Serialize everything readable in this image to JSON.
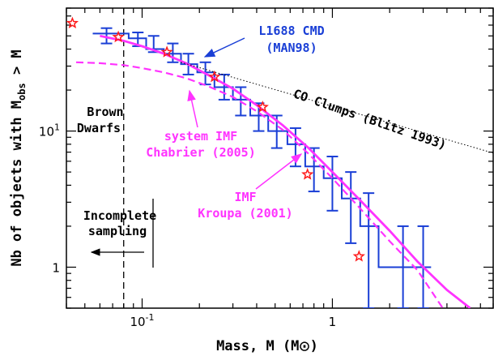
{
  "chart_data": {
    "type": "line",
    "xscale": "log",
    "yscale": "log",
    "xlim": [
      0.04,
      7.0
    ],
    "ylim": [
      0.5,
      80
    ],
    "xlabel_pre": "Mass, M (M",
    "xlabel_post": ")",
    "ylabel_pre": "Nb of objects with M",
    "ylabel_sub": "obs",
    "ylabel_post": " > M",
    "x_ticks": [
      {
        "value": 0.1,
        "label": "10",
        "exp": "-1"
      },
      {
        "value": 1,
        "label": "1",
        "exp": ""
      }
    ],
    "y_ticks": [
      {
        "value": 1,
        "label": "1",
        "exp": ""
      },
      {
        "value": 10,
        "label": "10",
        "exp": "1"
      }
    ],
    "series": [
      {
        "name": "L1688 CMD (MAN98)",
        "kind": "histogram_with_errorbars",
        "color": "#1a3fd6",
        "steps": [
          [
            0.055,
            52
          ],
          [
            0.085,
            52
          ],
          [
            0.085,
            48
          ],
          [
            0.105,
            48
          ],
          [
            0.105,
            40
          ],
          [
            0.13,
            40
          ],
          [
            0.13,
            37
          ],
          [
            0.16,
            37
          ],
          [
            0.16,
            31
          ],
          [
            0.195,
            31
          ],
          [
            0.195,
            27
          ],
          [
            0.24,
            27
          ],
          [
            0.24,
            21
          ],
          [
            0.3,
            21
          ],
          [
            0.3,
            17
          ],
          [
            0.37,
            17
          ],
          [
            0.37,
            13
          ],
          [
            0.46,
            13
          ],
          [
            0.46,
            10
          ],
          [
            0.58,
            10
          ],
          [
            0.58,
            8
          ],
          [
            0.72,
            8
          ],
          [
            0.72,
            5.5
          ],
          [
            0.9,
            5.5
          ],
          [
            0.9,
            4.5
          ],
          [
            1.12,
            4.5
          ],
          [
            1.12,
            3.2
          ],
          [
            1.4,
            3.2
          ],
          [
            1.4,
            2
          ],
          [
            1.75,
            2
          ],
          [
            1.75,
            1
          ],
          [
            3.3,
            1
          ]
        ],
        "errorbars": [
          {
            "x": 0.065,
            "y": 52,
            "lo": 44,
            "hi": 57
          },
          {
            "x": 0.095,
            "y": 48,
            "lo": 42,
            "hi": 53
          },
          {
            "x": 0.115,
            "y": 44,
            "lo": 38,
            "hi": 50
          },
          {
            "x": 0.145,
            "y": 38,
            "lo": 32,
            "hi": 44
          },
          {
            "x": 0.175,
            "y": 31,
            "lo": 26,
            "hi": 37
          },
          {
            "x": 0.215,
            "y": 27,
            "lo": 22,
            "hi": 32
          },
          {
            "x": 0.27,
            "y": 21,
            "lo": 17,
            "hi": 26
          },
          {
            "x": 0.33,
            "y": 17,
            "lo": 13,
            "hi": 21
          },
          {
            "x": 0.41,
            "y": 13,
            "lo": 10,
            "hi": 16
          },
          {
            "x": 0.51,
            "y": 10,
            "lo": 7.5,
            "hi": 13
          },
          {
            "x": 0.64,
            "y": 8,
            "lo": 5.5,
            "hi": 10.5
          },
          {
            "x": 0.8,
            "y": 5.5,
            "lo": 3.6,
            "hi": 7.5
          },
          {
            "x": 1.0,
            "y": 4.5,
            "lo": 2.6,
            "hi": 6.5
          },
          {
            "x": 1.25,
            "y": 3.2,
            "lo": 1.5,
            "hi": 5
          },
          {
            "x": 1.55,
            "y": 2,
            "lo": 0.5,
            "hi": 3.5
          },
          {
            "x": 2.35,
            "y": 1,
            "lo": 0.5,
            "hi": 2
          },
          {
            "x": 3.0,
            "y": 1,
            "lo": 0.5,
            "hi": 2
          }
        ]
      },
      {
        "name": "IMF Kroupa (2001)",
        "kind": "line",
        "color": "#ff33ff",
        "points": [
          [
            0.06,
            50
          ],
          [
            0.08,
            46
          ],
          [
            0.1,
            42
          ],
          [
            0.13,
            37
          ],
          [
            0.17,
            31.5
          ],
          [
            0.22,
            26
          ],
          [
            0.3,
            20.5
          ],
          [
            0.4,
            15.5
          ],
          [
            0.55,
            11
          ],
          [
            0.75,
            7.5
          ],
          [
            1.0,
            5.0
          ],
          [
            1.4,
            3.1
          ],
          [
            2.0,
            1.85
          ],
          [
            2.8,
            1.1
          ],
          [
            4.0,
            0.68
          ],
          [
            5.3,
            0.5
          ]
        ]
      },
      {
        "name": "system IMF Chabrier (2005)",
        "kind": "dashed_line",
        "color": "#ff33ff",
        "points": [
          [
            0.045,
            32
          ],
          [
            0.06,
            31.5
          ],
          [
            0.08,
            30.5
          ],
          [
            0.1,
            29
          ],
          [
            0.13,
            27
          ],
          [
            0.17,
            24.5
          ],
          [
            0.22,
            21.5
          ],
          [
            0.3,
            17.8
          ],
          [
            0.4,
            14
          ],
          [
            0.55,
            10.2
          ],
          [
            0.75,
            6.8
          ],
          [
            1.0,
            4.5
          ],
          [
            1.4,
            2.7
          ],
          [
            2.0,
            1.55
          ],
          [
            2.8,
            0.95
          ],
          [
            3.8,
            0.5
          ]
        ]
      },
      {
        "name": "CO Clumps (Blitz 1993)",
        "kind": "dotted_line",
        "color": "#000000",
        "points": [
          [
            0.16,
            32
          ],
          [
            7.0,
            6.9
          ]
        ]
      },
      {
        "name": "stars",
        "kind": "markers",
        "color": "#ff1a1a",
        "points": [
          [
            0.043,
            62
          ],
          [
            0.075,
            49
          ],
          [
            0.135,
            38
          ],
          [
            0.24,
            25
          ],
          [
            0.43,
            15
          ],
          [
            0.74,
            4.8
          ],
          [
            1.38,
            1.2
          ]
        ]
      }
    ],
    "brown_dwarf_limit": 0.08,
    "annotations": {
      "l1688_line1": "L1688 CMD",
      "l1688_line2": "(MAN98)",
      "co": "CO Clumps (Blitz 1993)",
      "brown1": "Brown",
      "brown2": "Dwarfs",
      "chab1": "system IMF",
      "chab2": "Chabrier (2005)",
      "kroupa1": "IMF",
      "kroupa2": "Kroupa (2001)",
      "incomp1": "Incomplete",
      "incomp2": "sampling"
    }
  }
}
